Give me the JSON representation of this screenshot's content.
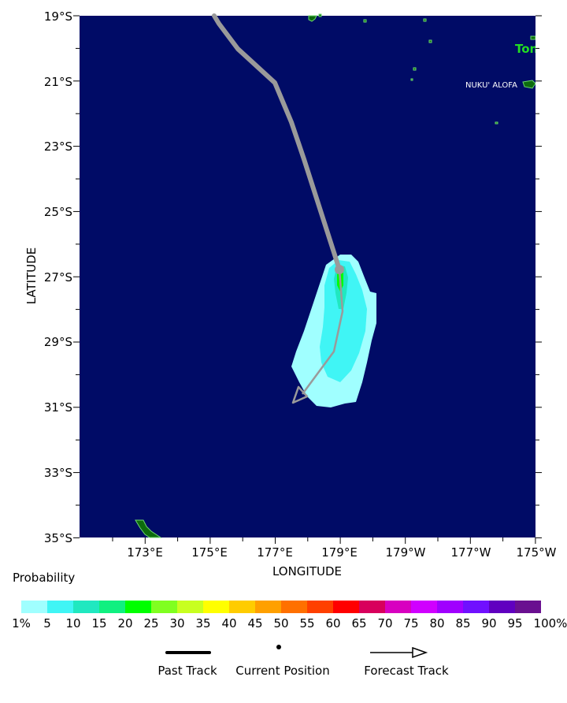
{
  "map": {
    "ocean_color": "#000b66",
    "land_color": "#0d6b0d",
    "land_outline_color": "#6cd96c",
    "past_track_color": "#9a9a9a",
    "lat_ticks": [
      "19°S",
      "21°S",
      "23°S",
      "25°S",
      "27°S",
      "29°S",
      "31°S",
      "33°S",
      "35°S"
    ],
    "lon_ticks": [
      "173°E",
      "175°E",
      "177°E",
      "179°E",
      "179°W",
      "177°W",
      "175°W"
    ],
    "y_axis_title": "LATITUDE",
    "x_axis_title": "LONGITUDE",
    "place_label": "NUKU' ALOFA",
    "country_label": "Ton",
    "country_label_color": "#22dd22"
  },
  "legend": {
    "title": "Probability",
    "bins": [
      {
        "label": "1%",
        "color": "#a0ffff"
      },
      {
        "label": "5",
        "color": "#40f5f5"
      },
      {
        "label": "10",
        "color": "#20e8c0"
      },
      {
        "label": "15",
        "color": "#10f080"
      },
      {
        "label": "20",
        "color": "#00ff00"
      },
      {
        "label": "25",
        "color": "#80ff20"
      },
      {
        "label": "30",
        "color": "#c8ff20"
      },
      {
        "label": "35",
        "color": "#ffff00"
      },
      {
        "label": "40",
        "color": "#ffcc00"
      },
      {
        "label": "45",
        "color": "#ffa000"
      },
      {
        "label": "50",
        "color": "#ff7000"
      },
      {
        "label": "55",
        "color": "#ff4000"
      },
      {
        "label": "60",
        "color": "#ff0000"
      },
      {
        "label": "65",
        "color": "#d8005c"
      },
      {
        "label": "70",
        "color": "#d800c0"
      },
      {
        "label": "75",
        "color": "#d000ff"
      },
      {
        "label": "80",
        "color": "#a000ff"
      },
      {
        "label": "85",
        "color": "#7010ff"
      },
      {
        "label": "90",
        "color": "#6000c0"
      },
      {
        "label": "95",
        "color": "#6a1090"
      },
      {
        "label": "100%",
        "color": "#6a0050"
      }
    ],
    "keys": {
      "past_track": "Past Track",
      "current_position": "Current Position",
      "forecast_track": "Forecast Track"
    }
  }
}
